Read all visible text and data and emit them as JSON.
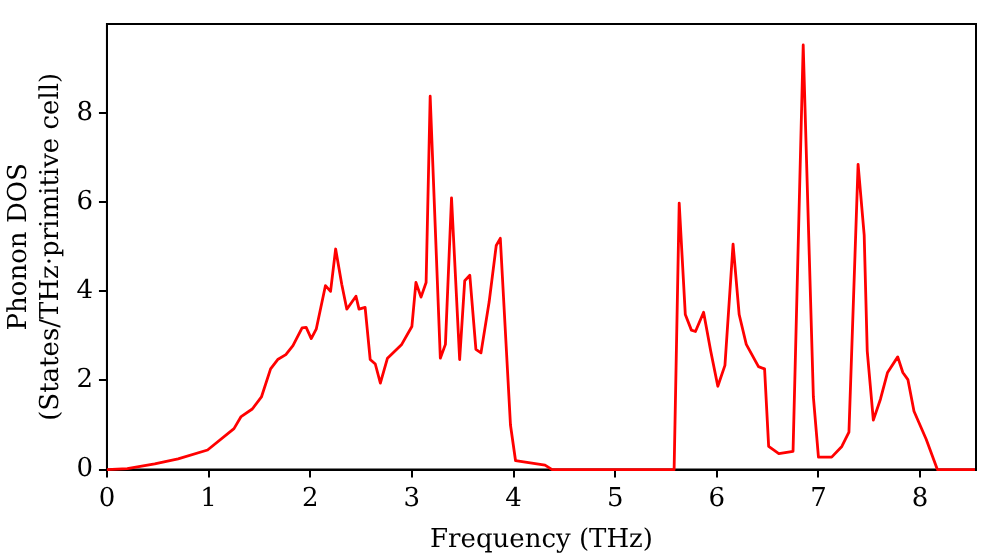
{
  "chart_data": {
    "type": "line",
    "xlabel": "Frequency (THz)",
    "ylabel": "Phonon DOS\n(States/THz·primitive cell)",
    "xlim": [
      0,
      8.55
    ],
    "xticks": [
      0,
      1,
      2,
      3,
      4,
      5,
      6,
      7,
      8
    ],
    "ylim": [
      0,
      10
    ],
    "yticks": [
      0,
      2,
      4,
      6,
      8
    ],
    "grid": false,
    "legend": false,
    "marker": "none",
    "line_style": "solid",
    "series": [
      {
        "color": "#ff0000",
        "x": [
          0,
          0.2,
          0.47,
          0.7,
          0.99,
          1.25,
          1.32,
          1.43,
          1.52,
          1.61,
          1.68,
          1.76,
          1.83,
          1.92,
          1.96,
          2.01,
          2.06,
          2.15,
          2.2,
          2.25,
          2.31,
          2.36,
          2.45,
          2.48,
          2.54,
          2.59,
          2.64,
          2.69,
          2.76,
          2.9,
          3.0,
          3.04,
          3.09,
          3.14,
          3.18,
          3.28,
          3.33,
          3.39,
          3.47,
          3.52,
          3.57,
          3.63,
          3.68,
          3.76,
          3.83,
          3.87,
          3.97,
          4.02,
          4.31,
          4.38,
          5.58,
          5.63,
          5.69,
          5.75,
          5.79,
          5.87,
          5.94,
          6.01,
          6.08,
          6.16,
          6.22,
          6.29,
          6.41,
          6.47,
          6.51,
          6.61,
          6.75,
          6.85,
          6.95,
          7.0,
          7.13,
          7.23,
          7.3,
          7.39,
          7.45,
          7.48,
          7.54,
          7.61,
          7.68,
          7.78,
          7.83,
          7.88,
          7.94,
          8.06,
          8.17,
          8.54
        ],
        "values": [
          0,
          0.02,
          0.13,
          0.24,
          0.44,
          0.92,
          1.19,
          1.36,
          1.63,
          2.26,
          2.47,
          2.58,
          2.78,
          3.18,
          3.19,
          2.94,
          3.16,
          4.13,
          4.0,
          4.95,
          4.16,
          3.6,
          3.89,
          3.6,
          3.64,
          2.47,
          2.37,
          1.94,
          2.5,
          2.81,
          3.21,
          4.2,
          3.87,
          4.2,
          8.38,
          2.5,
          2.81,
          6.1,
          2.47,
          4.24,
          4.36,
          2.7,
          2.62,
          3.76,
          5.03,
          5.19,
          1.0,
          0.2,
          0.1,
          0,
          0,
          5.98,
          3.48,
          3.13,
          3.1,
          3.53,
          2.66,
          1.87,
          2.34,
          5.06,
          3.48,
          2.81,
          2.31,
          2.26,
          0.52,
          0.36,
          0.41,
          9.53,
          1.63,
          0.28,
          0.28,
          0.52,
          0.84,
          6.85,
          5.26,
          2.66,
          1.11,
          1.58,
          2.18,
          2.53,
          2.18,
          2.02,
          1.31,
          0.68,
          0,
          0
        ]
      }
    ]
  }
}
